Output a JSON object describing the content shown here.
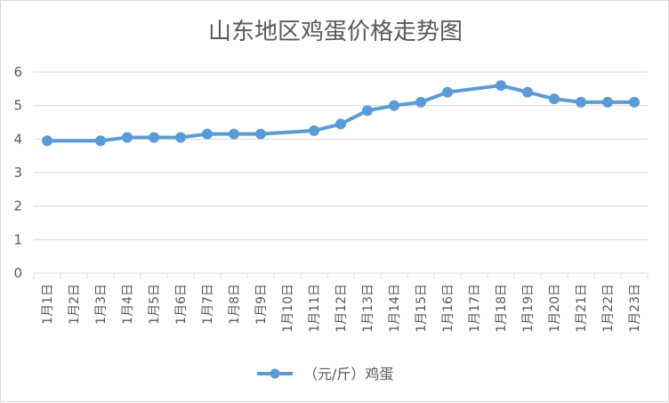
{
  "chart_data": {
    "type": "line",
    "title": "山东地区鸡蛋价格走势图",
    "categories": [
      "1月1日",
      "1月2日",
      "1月3日",
      "1月4日",
      "1月5日",
      "1月6日",
      "1月7日",
      "1月8日",
      "1月9日",
      "1月10日",
      "1月11日",
      "1月12日",
      "1月13日",
      "1月14日",
      "1月15日",
      "1月16日",
      "1月17日",
      "1月18日",
      "1月19日",
      "1月20日",
      "1月21日",
      "1月22日",
      "1月23日"
    ],
    "series": [
      {
        "name": "（元/斤）鸡蛋",
        "color": "#5b9bd5",
        "values": [
          3.95,
          null,
          3.95,
          4.05,
          4.05,
          4.05,
          4.15,
          4.15,
          4.15,
          null,
          4.25,
          4.45,
          4.85,
          5.0,
          5.1,
          5.4,
          null,
          5.6,
          5.4,
          5.2,
          5.1,
          5.1,
          5.1
        ]
      }
    ],
    "ylim": [
      0,
      6
    ],
    "yticks": [
      0,
      1,
      2,
      3,
      4,
      5,
      6
    ],
    "grid": true,
    "legend": "bottom"
  }
}
